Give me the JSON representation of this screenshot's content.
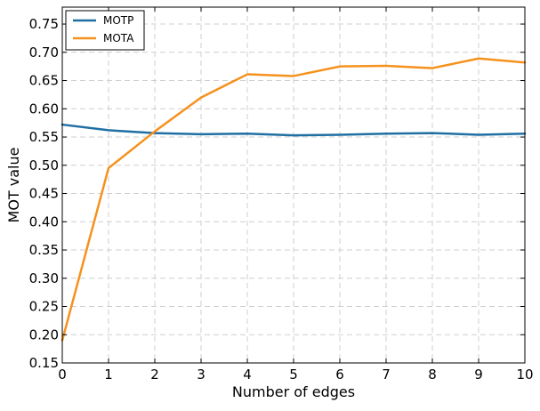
{
  "chart_data": {
    "type": "line",
    "title": "",
    "xlabel": "Number of edges",
    "ylabel": "MOT value",
    "x": [
      0,
      1,
      2,
      3,
      4,
      5,
      6,
      7,
      8,
      9,
      10
    ],
    "xlim": [
      0,
      10
    ],
    "ylim": [
      0.15,
      0.78
    ],
    "xticks": [
      "0",
      "1",
      "2",
      "3",
      "4",
      "5",
      "6",
      "7",
      "8",
      "9",
      "10"
    ],
    "yticks": [
      "0.15",
      "0.20",
      "0.25",
      "0.30",
      "0.35",
      "0.40",
      "0.45",
      "0.50",
      "0.55",
      "0.60",
      "0.65",
      "0.70",
      "0.75"
    ],
    "grid": true,
    "legend_position": "top-left",
    "series": [
      {
        "name": "MOTP",
        "color": "#1f6fa3",
        "values": [
          0.572,
          0.562,
          0.557,
          0.555,
          0.556,
          0.553,
          0.554,
          0.556,
          0.557,
          0.554,
          0.556
        ]
      },
      {
        "name": "MOTA",
        "color": "#f5921e",
        "values": [
          0.19,
          0.495,
          0.56,
          0.62,
          0.661,
          0.658,
          0.675,
          0.676,
          0.672,
          0.689,
          0.682
        ]
      }
    ]
  }
}
